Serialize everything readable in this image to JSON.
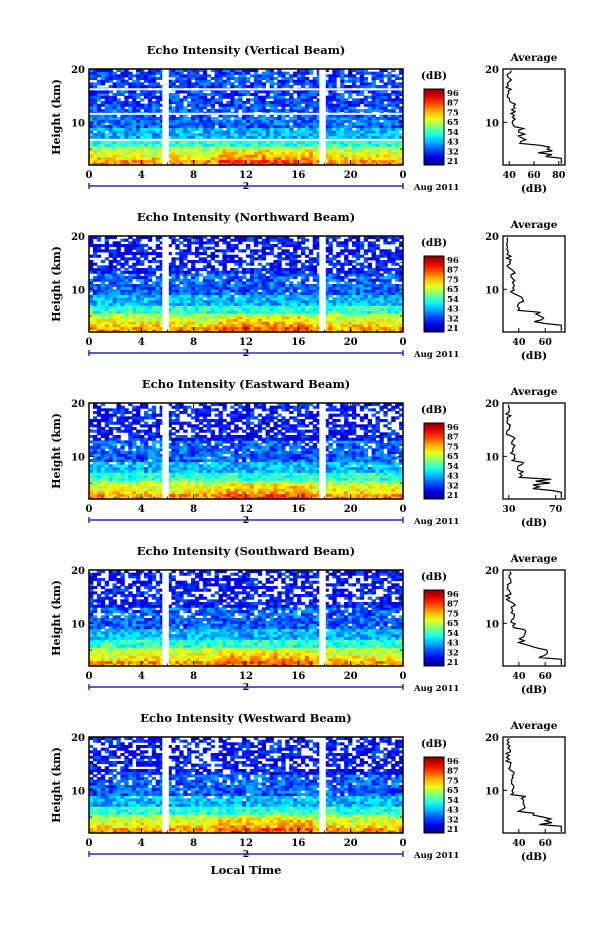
{
  "figure": {
    "date_label": "Aug 2011",
    "local_time_label": "Local Time",
    "day_marker": "2",
    "colorbar_unit": "(dB)",
    "colorbar_ticks": [
      "96",
      "87",
      "75",
      "65",
      "54",
      "43",
      "32",
      "21"
    ],
    "colors": {
      "white_gap": "#ffffff",
      "axis": "#000000",
      "timeline": "#0000aa"
    }
  },
  "chart_data": [
    {
      "type": "heatmap",
      "name": "vertical",
      "title": "Echo Intensity (Vertical Beam)",
      "xlabel": "",
      "ylabel": "Height (km)",
      "xlim": [
        0,
        24
      ],
      "ylim": [
        2,
        20
      ],
      "x_ticks": [
        "0",
        "4",
        "8",
        "12",
        "16",
        "20",
        "0"
      ],
      "y_ticks": [
        "20",
        "10"
      ],
      "z_unit": "dB",
      "zlim": [
        21,
        96
      ],
      "data_gaps_hours": [
        [
          5.6,
          6.1
        ],
        [
          17.6,
          18.1
        ]
      ],
      "average": {
        "title": "Average",
        "xlabel": "(dB)",
        "x_ticks": [
          "40",
          "60",
          "80"
        ],
        "xlim": [
          35,
          85
        ],
        "y_ticks": [
          "20",
          "10"
        ]
      }
    },
    {
      "type": "heatmap",
      "name": "northward",
      "title": "Echo Intensity (Northward Beam)",
      "xlabel": "",
      "ylabel": "Height (km)",
      "xlim": [
        0,
        24
      ],
      "ylim": [
        2,
        20
      ],
      "x_ticks": [
        "0",
        "4",
        "8",
        "12",
        "16",
        "20",
        "0"
      ],
      "y_ticks": [
        "20",
        "10"
      ],
      "z_unit": "dB",
      "zlim": [
        21,
        96
      ],
      "data_gaps_hours": [
        [
          5.6,
          6.1
        ],
        [
          17.6,
          18.1
        ]
      ],
      "average": {
        "title": "Average",
        "xlabel": "(dB)",
        "x_ticks": [
          "40",
          "60"
        ],
        "xlim": [
          28,
          75
        ],
        "y_ticks": [
          "20",
          "10"
        ]
      }
    },
    {
      "type": "heatmap",
      "name": "eastward",
      "title": "Echo Intensity (Eastward Beam)",
      "xlabel": "",
      "ylabel": "Height (km)",
      "xlim": [
        0,
        24
      ],
      "ylim": [
        2,
        20
      ],
      "x_ticks": [
        "0",
        "4",
        "8",
        "12",
        "16",
        "20",
        "0"
      ],
      "y_ticks": [
        "20",
        "10"
      ],
      "z_unit": "dB",
      "zlim": [
        21,
        96
      ],
      "data_gaps_hours": [
        [
          5.6,
          6.1
        ],
        [
          17.6,
          18.1
        ]
      ],
      "average": {
        "title": "Average",
        "xlabel": "(dB)",
        "x_ticks": [
          "30",
          "70"
        ],
        "xlim": [
          25,
          78
        ],
        "y_ticks": [
          "20",
          "10"
        ]
      }
    },
    {
      "type": "heatmap",
      "name": "southward",
      "title": "Echo Intensity (Southward Beam)",
      "xlabel": "",
      "ylabel": "Height (km)",
      "xlim": [
        0,
        24
      ],
      "ylim": [
        2,
        20
      ],
      "x_ticks": [
        "0",
        "4",
        "8",
        "12",
        "16",
        "20",
        "0"
      ],
      "y_ticks": [
        "20",
        "10"
      ],
      "z_unit": "dB",
      "zlim": [
        21,
        96
      ],
      "data_gaps_hours": [
        [
          5.6,
          6.1
        ],
        [
          17.6,
          18.1
        ]
      ],
      "average": {
        "title": "Average",
        "xlabel": "(dB)",
        "x_ticks": [
          "40",
          "60"
        ],
        "xlim": [
          28,
          75
        ],
        "y_ticks": [
          "20",
          "10"
        ]
      }
    },
    {
      "type": "heatmap",
      "name": "westward",
      "title": "Echo Intensity (Westward Beam)",
      "xlabel": "Local Time",
      "ylabel": "Height (km)",
      "xlim": [
        0,
        24
      ],
      "ylim": [
        2,
        20
      ],
      "x_ticks": [
        "0",
        "4",
        "8",
        "12",
        "16",
        "20",
        "0"
      ],
      "y_ticks": [
        "20",
        "10"
      ],
      "z_unit": "dB",
      "zlim": [
        21,
        96
      ],
      "data_gaps_hours": [
        [
          5.6,
          6.1
        ],
        [
          17.6,
          18.1
        ]
      ],
      "average": {
        "title": "Average",
        "xlabel": "(dB)",
        "x_ticks": [
          "40",
          "60"
        ],
        "xlim": [
          28,
          75
        ],
        "y_ticks": [
          "20",
          "10"
        ]
      }
    }
  ]
}
